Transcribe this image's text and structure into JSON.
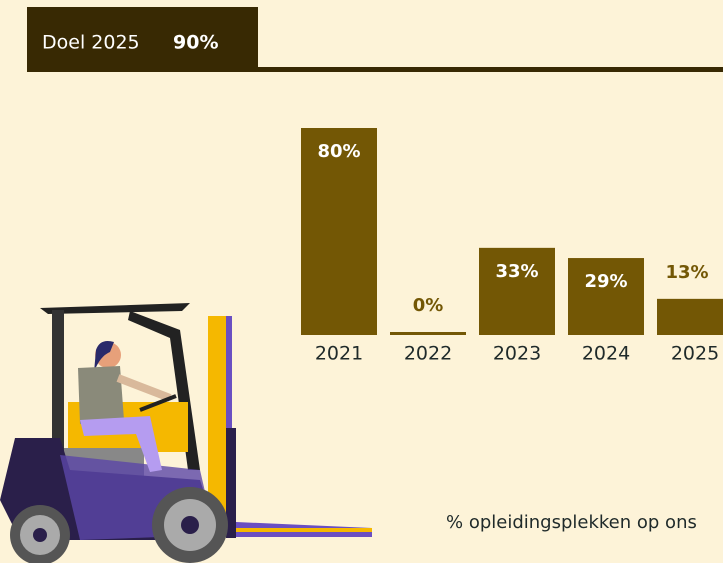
{
  "header": {
    "label": "Doel 2025",
    "value": "90%"
  },
  "chart_data": {
    "type": "bar",
    "categories": [
      "2021",
      "2022",
      "2023",
      "2024",
      "2025"
    ],
    "values": [
      80,
      0,
      33,
      29,
      13
    ],
    "value_labels": [
      "80%",
      "0%",
      "33%",
      "29%",
      "13%"
    ],
    "color": "#735705"
  },
  "footer": "% opleidingsplekken op ons"
}
